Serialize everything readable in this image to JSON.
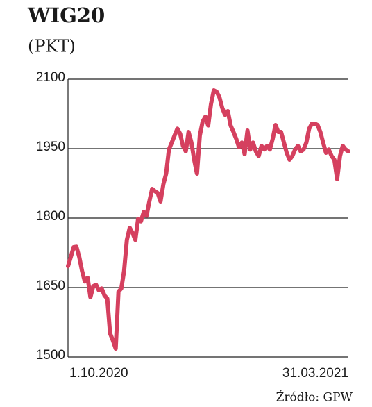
{
  "chart_data": {
    "type": "line",
    "title": "WIG20",
    "subtitle": "(PKT)",
    "source": "Źródło: GPW",
    "categories": [
      "1.10.2020",
      null,
      null,
      null,
      null,
      null,
      null,
      null,
      null,
      null,
      null,
      null,
      null,
      null,
      null,
      null,
      null,
      null,
      null,
      null,
      null,
      null,
      null,
      null,
      null,
      null,
      null,
      null,
      null,
      null,
      null,
      null,
      null,
      null,
      null,
      null,
      null,
      null,
      null,
      null,
      null,
      null,
      null,
      null,
      null,
      null,
      null,
      null,
      null,
      null,
      null,
      null,
      null,
      null,
      null,
      null,
      null,
      null,
      null,
      null,
      null,
      null,
      null,
      null,
      null,
      null,
      null,
      null,
      null,
      null,
      null,
      null,
      null,
      null,
      null,
      null,
      null,
      null,
      null,
      null,
      null,
      null,
      null,
      null,
      null,
      null,
      null,
      null,
      null,
      null,
      null,
      null,
      null,
      null,
      null,
      null,
      null,
      null,
      null,
      null,
      "31.03.2021"
    ],
    "values": [
      1696,
      1716,
      1737,
      1738,
      1716,
      1686,
      1663,
      1671,
      1629,
      1653,
      1656,
      1644,
      1648,
      1633,
      1626,
      1551,
      1536,
      1518,
      1641,
      1648,
      1686,
      1753,
      1779,
      1768,
      1753,
      1798,
      1793,
      1813,
      1805,
      1836,
      1863,
      1858,
      1854,
      1836,
      1873,
      1896,
      1948,
      1963,
      1978,
      1993,
      1982,
      1956,
      1944,
      1986,
      1963,
      1926,
      1896,
      1978,
      2008,
      2019,
      2000,
      2046,
      2076,
      2073,
      2061,
      2038,
      2023,
      2031,
      2000,
      1986,
      1971,
      1953,
      1963,
      1938,
      1989,
      1948,
      1963,
      1944,
      1934,
      1956,
      1948,
      1956,
      1948,
      1971,
      2001,
      1986,
      1986,
      1963,
      1941,
      1926,
      1934,
      1948,
      1956,
      1944,
      1948,
      1963,
      1993,
      2004,
      2004,
      2001,
      1986,
      1963,
      1941,
      1948,
      1934,
      1926,
      1884,
      1934,
      1956,
      1948,
      1944
    ],
    "color": "#d5405f",
    "ylim": [
      1500,
      2100
    ],
    "yticks": [
      1500,
      1650,
      1800,
      1950,
      2100
    ],
    "grid": true
  }
}
